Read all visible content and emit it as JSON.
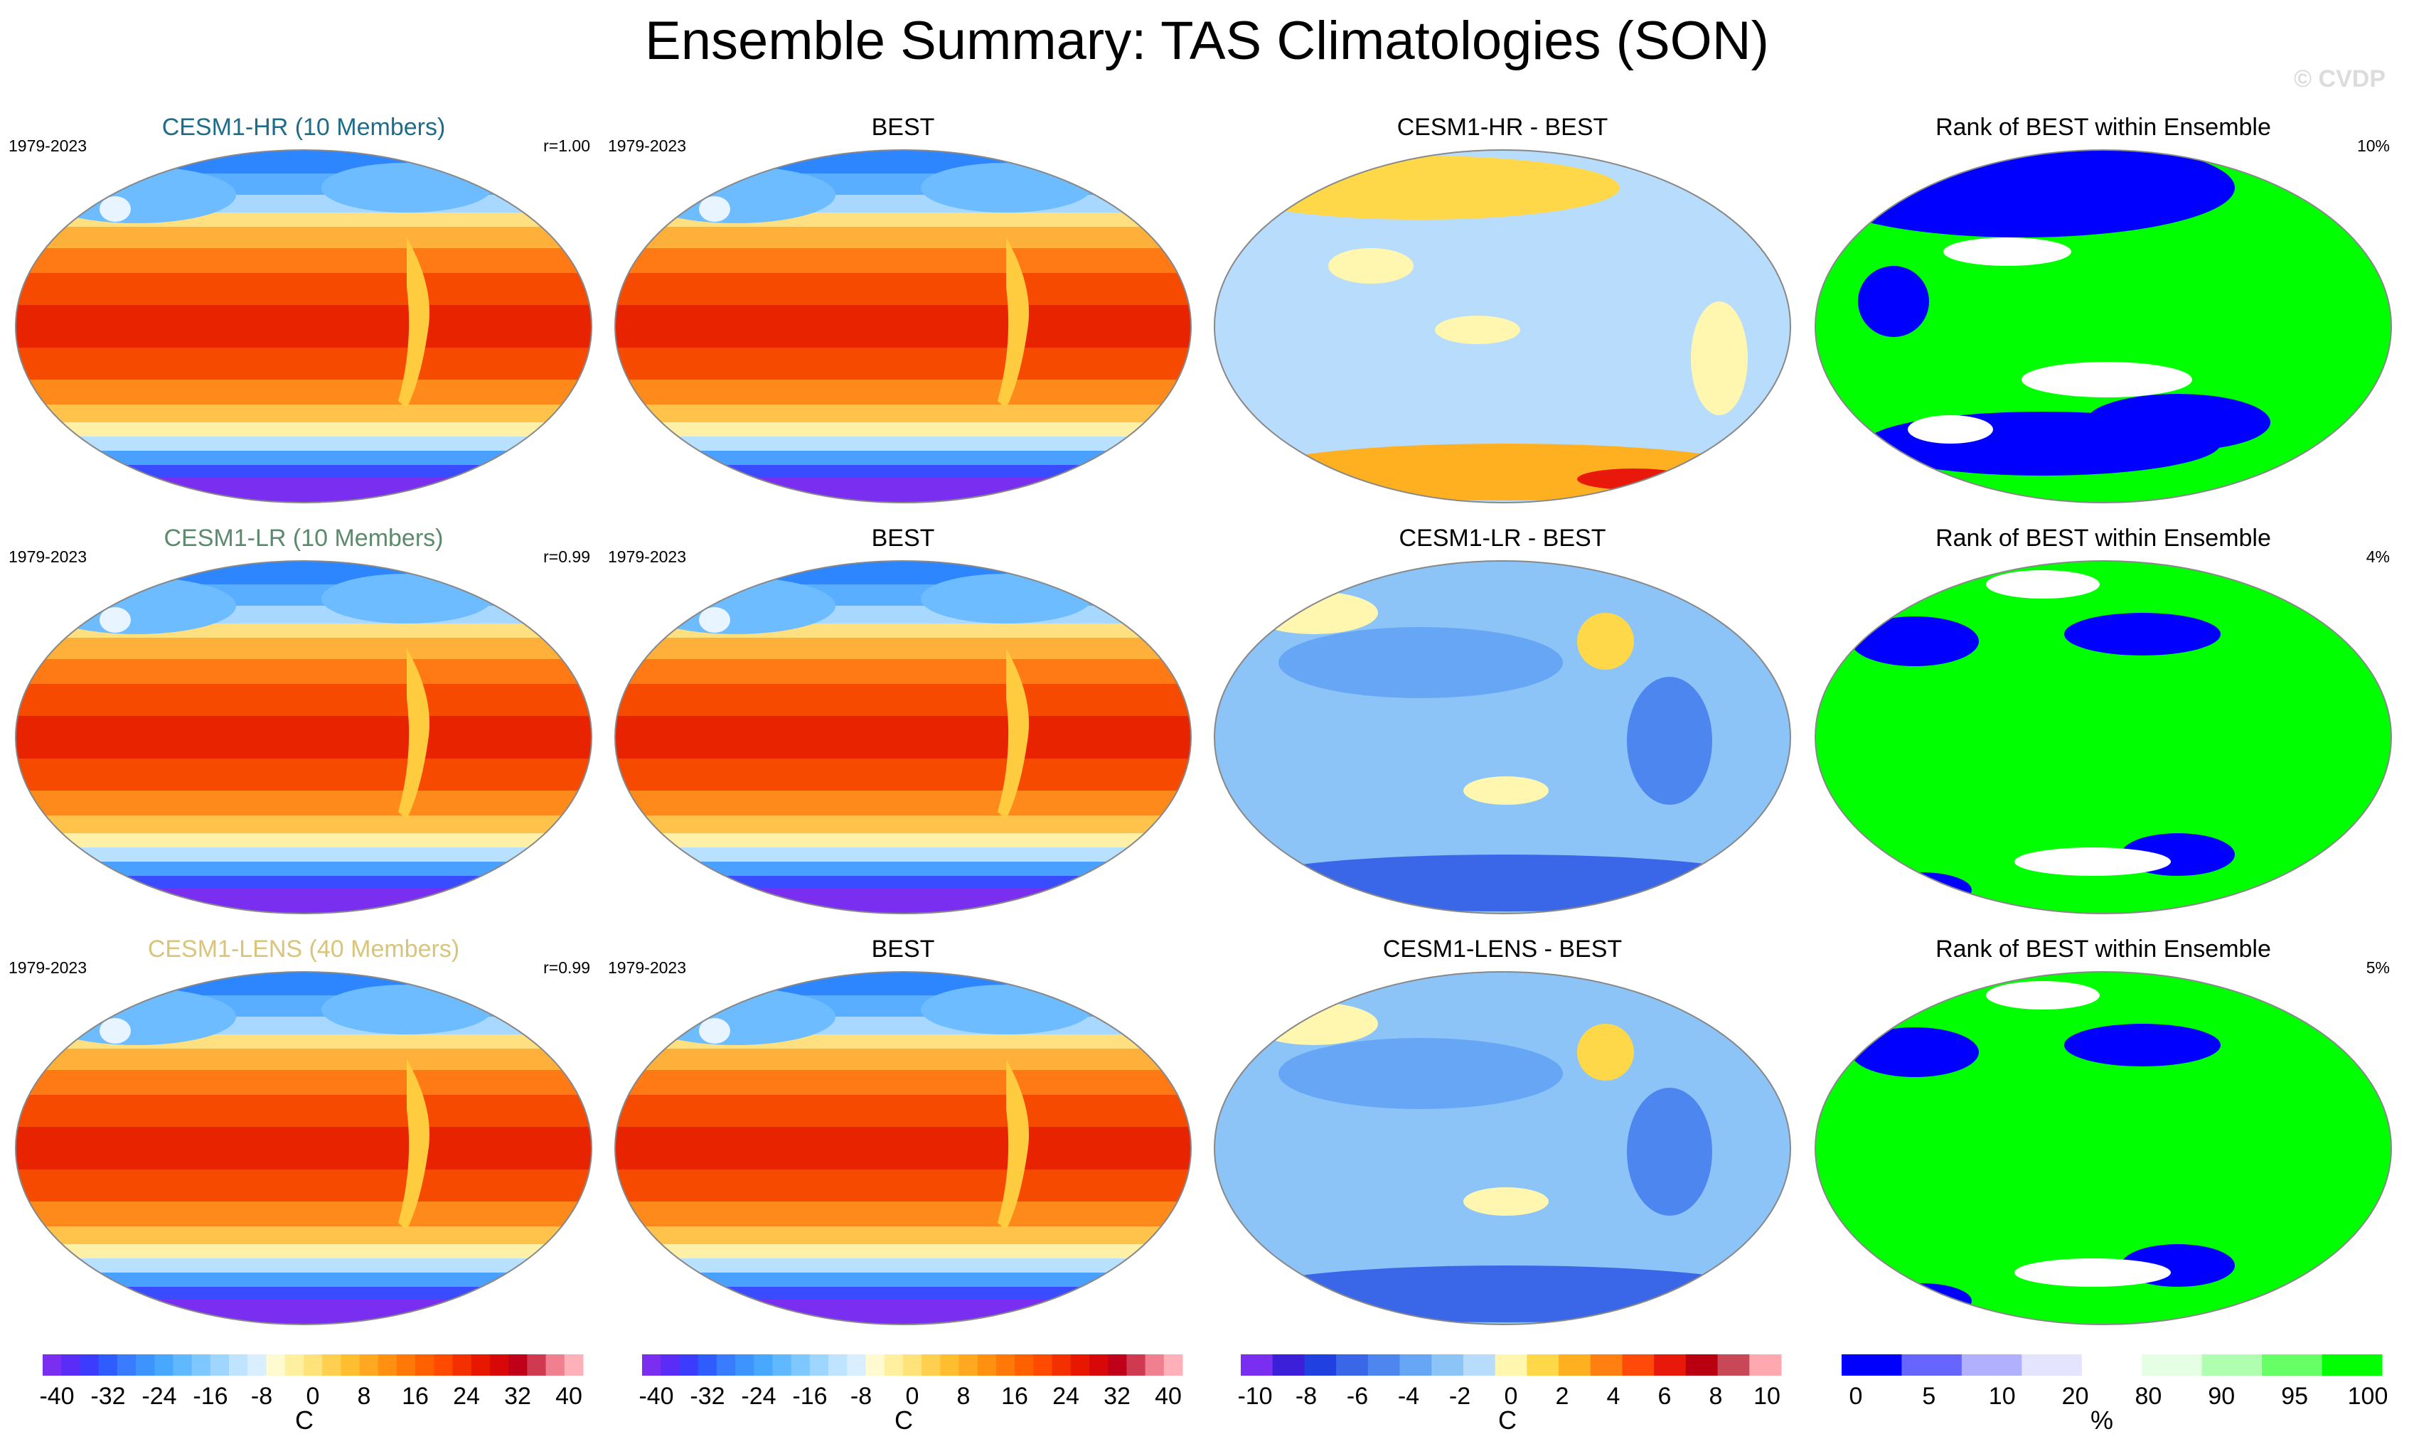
{
  "title": "Ensemble Summary: TAS Climatologies (SON)",
  "watermark": "© CVDP",
  "rows": [
    {
      "model": {
        "title": "CESM1-HR (10 Members)",
        "title_color": "#1f6c8a",
        "period": "1979-2023",
        "pattern_corr": "r=1.00"
      },
      "obs": {
        "title": "BEST",
        "period": "1979-2023"
      },
      "diff": {
        "title": "CESM1-HR - BEST"
      },
      "rank": {
        "title": "Rank of BEST within Ensemble",
        "percent": "10%"
      }
    },
    {
      "model": {
        "title": "CESM1-LR (10 Members)",
        "title_color": "#5b8a6c",
        "period": "1979-2023",
        "pattern_corr": "r=0.99"
      },
      "obs": {
        "title": "BEST",
        "period": "1979-2023"
      },
      "diff": {
        "title": "CESM1-LR - BEST"
      },
      "rank": {
        "title": "Rank of BEST within Ensemble",
        "percent": "4%"
      }
    },
    {
      "model": {
        "title": "CESM1-LENS (40 Members)",
        "title_color": "#d8c47a",
        "period": "1979-2023",
        "pattern_corr": "r=0.99"
      },
      "obs": {
        "title": "BEST",
        "period": "1979-2023"
      },
      "diff": {
        "title": "CESM1-LENS - BEST"
      },
      "rank": {
        "title": "Rank of BEST within Ensemble",
        "percent": "5%"
      }
    }
  ],
  "colorbars": [
    {
      "labels": [
        "-40",
        "-32",
        "-24",
        "-16",
        "-8",
        "0",
        "8",
        "16",
        "24",
        "32",
        "40"
      ],
      "unit": "C",
      "colors": [
        "#7a2ff0",
        "#5a2cf5",
        "#3c3cff",
        "#2f5cff",
        "#3a7cff",
        "#3d94ff",
        "#48a8ff",
        "#60b8ff",
        "#7ec8ff",
        "#9ed6ff",
        "#bfe4ff",
        "#d9efff",
        "#fffad0",
        "#fff0a0",
        "#ffe27a",
        "#ffd050",
        "#ffbe30",
        "#ffa820",
        "#ff9010",
        "#ff7808",
        "#ff6000",
        "#ff4a00",
        "#f53000",
        "#e81800",
        "#d80808",
        "#c00018",
        "#d03a50",
        "#f08090",
        "#ffb0b8"
      ]
    },
    {
      "labels": [
        "-40",
        "-32",
        "-24",
        "-16",
        "-8",
        "0",
        "8",
        "16",
        "24",
        "32",
        "40"
      ],
      "unit": "C",
      "colors": [
        "#7a2ff0",
        "#5a2cf5",
        "#3c3cff",
        "#2f5cff",
        "#3a7cff",
        "#3d94ff",
        "#48a8ff",
        "#60b8ff",
        "#7ec8ff",
        "#9ed6ff",
        "#bfe4ff",
        "#d9efff",
        "#fffad0",
        "#fff0a0",
        "#ffe27a",
        "#ffd050",
        "#ffbe30",
        "#ffa820",
        "#ff9010",
        "#ff7808",
        "#ff6000",
        "#ff4a00",
        "#f53000",
        "#e81800",
        "#d80808",
        "#c00018",
        "#d03a50",
        "#f08090",
        "#ffb0b8"
      ]
    },
    {
      "labels": [
        "-10",
        "-8",
        "-6",
        "-4",
        "-2",
        "0",
        "2",
        "4",
        "6",
        "8",
        "10"
      ],
      "unit": "C",
      "colors": [
        "#7a2ff0",
        "#3c1fd8",
        "#2040e0",
        "#3a66e8",
        "#4d86ef",
        "#66a6f5",
        "#8cc4f8",
        "#b8dcfb",
        "#fff6b0",
        "#ffd84a",
        "#ffb020",
        "#ff8010",
        "#ff4a0a",
        "#e8180a",
        "#b80010",
        "#c84858",
        "#ffa8b0"
      ]
    },
    {
      "labels": [
        "0",
        "5",
        "10",
        "20",
        "80",
        "90",
        "95",
        "100"
      ],
      "unit": "%",
      "colors": [
        "#0000ff",
        "#6666ff",
        "#b0b0ff",
        "#e4e4ff",
        "#ffffff",
        "#e4ffe4",
        "#b0ffb0",
        "#66ff66",
        "#00ff00"
      ]
    }
  ],
  "chart_data": [
    {
      "type": "heatmap",
      "title": "CESM1-HR (10 Members)",
      "field": "surface air temperature climatology",
      "unit": "C",
      "range": [
        -40,
        40
      ],
      "period": "1979-2023",
      "stat": "r=1.00"
    },
    {
      "type": "heatmap",
      "title": "BEST",
      "field": "surface air temperature climatology",
      "unit": "C",
      "range": [
        -40,
        40
      ],
      "period": "1979-2023"
    },
    {
      "type": "heatmap",
      "title": "CESM1-HR - BEST",
      "field": "difference",
      "unit": "C",
      "range": [
        -10,
        10
      ]
    },
    {
      "type": "heatmap",
      "title": "Rank of BEST within Ensemble",
      "unit": "%",
      "range": [
        0,
        100
      ],
      "stat": "10%"
    },
    {
      "type": "heatmap",
      "title": "CESM1-LR (10 Members)",
      "field": "surface air temperature climatology",
      "unit": "C",
      "range": [
        -40,
        40
      ],
      "period": "1979-2023",
      "stat": "r=0.99"
    },
    {
      "type": "heatmap",
      "title": "BEST",
      "field": "surface air temperature climatology",
      "unit": "C",
      "range": [
        -40,
        40
      ],
      "period": "1979-2023"
    },
    {
      "type": "heatmap",
      "title": "CESM1-LR - BEST",
      "field": "difference",
      "unit": "C",
      "range": [
        -10,
        10
      ]
    },
    {
      "type": "heatmap",
      "title": "Rank of BEST within Ensemble",
      "unit": "%",
      "range": [
        0,
        100
      ],
      "stat": "4%"
    },
    {
      "type": "heatmap",
      "title": "CESM1-LENS (40 Members)",
      "field": "surface air temperature climatology",
      "unit": "C",
      "range": [
        -40,
        40
      ],
      "period": "1979-2023",
      "stat": "r=0.99"
    },
    {
      "type": "heatmap",
      "title": "BEST",
      "field": "surface air temperature climatology",
      "unit": "C",
      "range": [
        -40,
        40
      ],
      "period": "1979-2023"
    },
    {
      "type": "heatmap",
      "title": "CESM1-LENS - BEST",
      "field": "difference",
      "unit": "C",
      "range": [
        -10,
        10
      ]
    },
    {
      "type": "heatmap",
      "title": "Rank of BEST within Ensemble",
      "unit": "%",
      "range": [
        0,
        100
      ],
      "stat": "5%"
    }
  ]
}
